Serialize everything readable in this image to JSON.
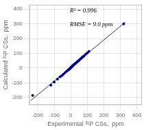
{
  "chart_data": {
    "type": "scatter",
    "xlabel": "Experimental ³¹P CSs,  ppm",
    "ylabel": "Calculated ³¹P CSs,  ppm",
    "annotations": [
      "R² = 0.996",
      "RMSE = 9.0 ppm"
    ],
    "xlim": [
      -250,
      430
    ],
    "ylim": [
      -250,
      430
    ],
    "xticks": [
      -200,
      -100,
      0,
      100,
      200,
      300,
      400
    ],
    "yticks": [
      -200,
      -100,
      0,
      100,
      200,
      300,
      400
    ],
    "grid": true,
    "series": [
      {
        "type": "scatter",
        "color": "#00008B",
        "x": [
          -230,
          -120,
          -100,
          -80,
          -65,
          -55,
          -45,
          -35,
          -25,
          -18,
          -12,
          -8,
          -5,
          -3,
          0,
          3,
          5,
          8,
          12,
          15,
          20,
          25,
          30,
          35,
          40,
          45,
          50,
          55,
          60,
          65,
          70,
          75,
          80,
          90,
          100,
          110,
          320
        ],
        "values": [
          -185,
          -115,
          -95,
          -75,
          -60,
          -52,
          -42,
          -32,
          -22,
          -15,
          -10,
          -6,
          -3,
          -1,
          2,
          5,
          8,
          12,
          16,
          19,
          24,
          29,
          33,
          38,
          43,
          48,
          53,
          58,
          63,
          68,
          73,
          78,
          83,
          93,
          103,
          113,
          300
        ]
      },
      {
        "type": "line",
        "color": "#333333",
        "x": [
          -240,
          330
        ],
        "values": [
          -218.612,
          311.675
        ]
      }
    ]
  }
}
